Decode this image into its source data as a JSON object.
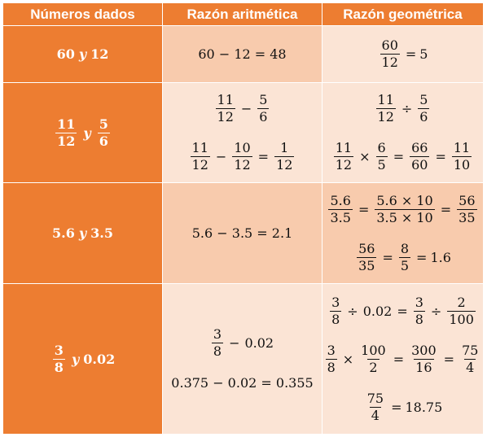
{
  "headers": [
    "Números dados",
    "Razón aritmética",
    "Razón geométrica"
  ],
  "rows": [
    {
      "given": {
        "a": "60",
        "y": "y",
        "b": "12"
      },
      "arith": [
        "60 − 12 = 48"
      ],
      "geo": {
        "num": "60",
        "den": "12",
        "eq": "=",
        "res": "5"
      }
    },
    {
      "given": {
        "a_num": "11",
        "a_den": "12",
        "y": "y",
        "b_num": "5",
        "b_den": "6"
      },
      "arith": {
        "l1": {
          "n1": "11",
          "d1": "12",
          "op": "−",
          "n2": "5",
          "d2": "6"
        },
        "l2": {
          "n1": "11",
          "d1": "12",
          "op": "−",
          "n2": "10",
          "d2": "12",
          "eq": "=",
          "n3": "1",
          "d3": "12"
        }
      },
      "geo": {
        "l1": {
          "n1": "11",
          "d1": "12",
          "op": "÷",
          "n2": "5",
          "d2": "6"
        },
        "l2": {
          "n1": "11",
          "d1": "12",
          "op": "×",
          "n2": "6",
          "d2": "5",
          "eq1": "=",
          "n3": "66",
          "d3": "60",
          "eq2": "=",
          "n4": "11",
          "d4": "10"
        }
      }
    },
    {
      "given": {
        "a": "5.6",
        "y": "y",
        "b": "3.5"
      },
      "arith": [
        "5.6 −  3.5 = 2.1"
      ],
      "geo": {
        "l1": {
          "n1": "5.6",
          "d1": "3.5",
          "eq1": "=",
          "n2": "5.6 × 10",
          "d2": "3.5 × 10",
          "eq2": "=",
          "n3": "56",
          "d3": "35"
        },
        "l2": {
          "n1": "56",
          "d1": "35",
          "eq1": "=",
          "n2": "8",
          "d2": "5",
          "eq2": "=",
          "res": "1.6"
        }
      }
    },
    {
      "given": {
        "a_num": "3",
        "a_den": "8",
        "y": "y",
        "b": "0.02"
      },
      "arith": {
        "l1": {
          "n1": "3",
          "d1": "8",
          "op": "−",
          "v": "0.02"
        },
        "l2": "0.375 −  0.02 = 0.355"
      },
      "geo": {
        "l1": {
          "n1": "3",
          "d1": "8",
          "op1": "÷",
          "v": "0.02",
          "eq": "=",
          "n2": "3",
          "d2": "8",
          "op2": "÷",
          "n3": "2",
          "d3": "100"
        },
        "l2": {
          "n1": "3",
          "d1": "8",
          "op": "×",
          "n2": "100",
          "d2": "2",
          "eq1": "=",
          "n3": "300",
          "d3": "16",
          "eq2": "=",
          "n4": "75",
          "d4": "4"
        },
        "l3": {
          "n1": "75",
          "d1": "4",
          "eq": "=",
          "res": "18.75"
        }
      }
    }
  ],
  "colors": {
    "header": "#ed7d31",
    "cell_dark": "#f8cbad",
    "cell_light": "#fbe4d5",
    "border": "#ffffff"
  }
}
